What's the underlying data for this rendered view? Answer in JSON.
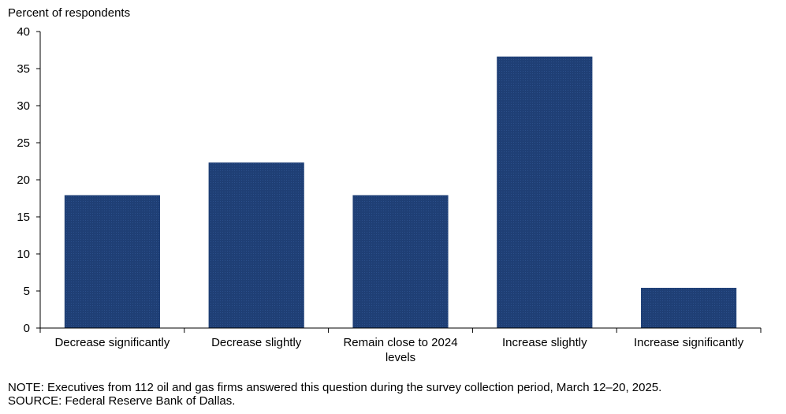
{
  "chart_data": {
    "type": "bar",
    "ylabel": "Percent of respondents",
    "xlabel": "",
    "categories": [
      [
        "Decrease significantly"
      ],
      [
        "Decrease slightly"
      ],
      [
        "Remain close to 2024",
        "levels"
      ],
      [
        "Increase slightly"
      ],
      [
        "Increase significantly"
      ]
    ],
    "values": [
      17.9,
      22.3,
      17.9,
      36.6,
      5.4
    ],
    "ylim": [
      0,
      40
    ],
    "yticks": [
      0,
      5,
      10,
      15,
      20,
      25,
      30,
      35,
      40
    ],
    "bar_color": "#1f3f75",
    "grid": false,
    "legend": "none"
  },
  "notes": {
    "note": "NOTE: Executives from 112 oil and gas firms answered this question during the survey collection period, March 12–20, 2025.",
    "source": "SOURCE: Federal Reserve Bank of Dallas."
  }
}
